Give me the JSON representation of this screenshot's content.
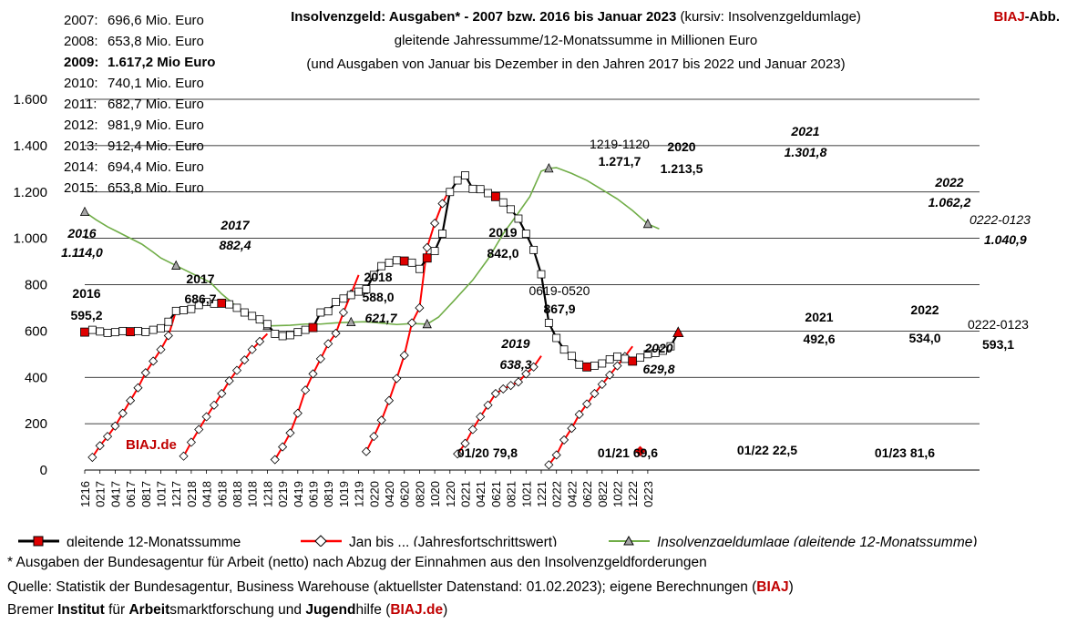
{
  "header": {
    "title_bold": "Insolvenzgeld: Ausgaben* - 2007 bzw. 2016 bis Januar 2023",
    "title_rest": " (kursiv: Insolvenzgeldumlage)",
    "subtitle1": "gleitende  Jahressumme/12-Monatssumme in Millionen Euro",
    "subtitle2": "(und Ausgaben von Januar bis Dezember in den Jahren 2017 bis 2022 und Januar 2023)",
    "brand_red": "BIAJ",
    "brand_rest": "-Abb."
  },
  "history": [
    {
      "year": "2007:",
      "value": "696,6 Mio. Euro",
      "bold": false
    },
    {
      "year": "2008:",
      "value": "653,8 Mio. Euro",
      "bold": false
    },
    {
      "year": "2009:",
      "value": "1.617,2 Mio Euro",
      "bold": true
    },
    {
      "year": "2010:",
      "value": "740,1 Mio. Euro",
      "bold": false
    },
    {
      "year": "2011:",
      "value": "682,7 Mio. Euro",
      "bold": false
    },
    {
      "year": "2012:",
      "value": "981,9 Mio. Euro",
      "bold": false
    },
    {
      "year": "2013:",
      "value": "912,4 Mio. Euro",
      "bold": false
    },
    {
      "year": "2014:",
      "value": "694,4 Mio. Euro",
      "bold": false
    },
    {
      "year": "2015:",
      "value": "653,8 Mio. Euro",
      "bold": false
    }
  ],
  "chart_data": {
    "type": "line",
    "ylim": [
      0,
      1600
    ],
    "yticks": [
      0,
      200,
      400,
      600,
      800,
      1000,
      1200,
      1400,
      1600
    ],
    "ytick_labels": [
      "0",
      "200",
      "400",
      "600",
      "800",
      "1.000",
      "1.200",
      "1.400",
      "1.600"
    ],
    "xtick_labels": [
      "1216",
      "0217",
      "0417",
      "0617",
      "0817",
      "1017",
      "1217",
      "0218",
      "0418",
      "0618",
      "0818",
      "1018",
      "1218",
      "0219",
      "0419",
      "0619",
      "0819",
      "1019",
      "1219",
      "0220",
      "0420",
      "0620",
      "0820",
      "1020",
      "1220",
      "0221",
      "0421",
      "0621",
      "0821",
      "1021",
      "1221",
      "0222",
      "0422",
      "0622",
      "0822",
      "1022",
      "1222",
      "0223"
    ],
    "grid": true,
    "legend_position": "bottom",
    "series": [
      {
        "name": "gleitende 12-Monatssumme",
        "color": "#000000",
        "marker_color": "#e00000",
        "values": [
          595.2,
          605,
          598,
          592,
          595,
          600,
          597,
          600,
          596,
          605,
          612,
          640,
          686.7,
          690,
          695,
          712,
          725,
          718,
          720,
          715,
          700,
          680,
          665,
          650,
          630,
          588.0,
          578,
          582,
          595,
          605,
          615,
          680,
          685,
          725,
          740,
          755,
          770,
          780,
          842.0,
          880,
          895,
          905,
          902,
          895,
          867.9,
          915,
          945,
          1020,
          1200,
          1250,
          1271.7,
          1213.5,
          1212,
          1195,
          1180,
          1155,
          1125,
          1085,
          1020,
          950,
          845,
          635,
          570,
          520,
          492.6,
          455,
          445,
          450,
          460,
          478,
          490,
          480,
          470,
          485,
          500,
          505,
          515,
          534.0,
          593.1
        ],
        "highlight_indices": [
          0,
          6,
          18,
          30,
          42,
          45,
          54,
          66,
          72,
          78
        ]
      },
      {
        "name": "Jan bis ... (Jahresfortschrittswert)",
        "color": "#ff0000",
        "marker_color": "#ffffff",
        "segments": [
          {
            "year": "2017",
            "start_index": 1,
            "values": [
              55,
              105,
              145,
              190,
              245,
              300,
              355,
              420,
              470,
              520,
              580,
              686.7
            ]
          },
          {
            "year": "2018",
            "start_index": 13,
            "values": [
              60,
              120,
              175,
              230,
              280,
              330,
              385,
              430,
              475,
              520,
              555,
              588.0
            ]
          },
          {
            "year": "2019",
            "start_index": 25,
            "values": [
              45,
              100,
              160,
              245,
              345,
              415,
              480,
              545,
              590,
              680,
              760,
              842.0
            ]
          },
          {
            "year": "2020",
            "start_index": 37,
            "values": [
              79.8,
              145,
              215,
              300,
              395,
              495,
              635,
              700,
              960,
              1065,
              1150,
              1213.5
            ]
          },
          {
            "year": "2021",
            "start_index": 49,
            "values": [
              69.6,
              115,
              175,
              230,
              280,
              330,
              350,
              365,
              380,
              415,
              445,
              492.6
            ]
          },
          {
            "year": "2022",
            "start_index": 61,
            "values": [
              22.5,
              65,
              130,
              180,
              240,
              285,
              330,
              370,
              410,
              450,
              490,
              534.0
            ]
          },
          {
            "year": "2023",
            "start_index": 73,
            "values": [
              81.6
            ]
          }
        ]
      },
      {
        "name": "Insolvenzgeldumlage (gleitende 12-Monatssumme)",
        "color": "#70ad47",
        "marker_color": "#a6a6a6",
        "points": [
          [
            0,
            1114.0
          ],
          [
            3,
            1080
          ],
          [
            6,
            1050
          ],
          [
            9,
            1025
          ],
          [
            12,
            1000
          ],
          [
            15,
            975
          ],
          [
            18,
            940
          ],
          [
            20,
            915
          ],
          [
            24,
            882.4
          ],
          [
            28,
            850
          ],
          [
            33,
            810
          ],
          [
            36,
            760
          ],
          [
            40,
            705
          ],
          [
            44,
            660
          ],
          [
            48,
            621.7
          ],
          [
            54,
            625
          ],
          [
            58,
            630
          ],
          [
            62,
            630
          ],
          [
            66,
            635
          ],
          [
            70,
            638.3
          ],
          [
            74,
            640
          ],
          [
            78,
            634
          ],
          [
            82,
            628
          ],
          [
            86,
            632
          ],
          [
            90,
            629.8
          ],
          [
            93,
            660
          ],
          [
            97,
            730
          ],
          [
            102,
            820
          ],
          [
            106,
            910
          ],
          [
            110,
            1020
          ],
          [
            114,
            1110
          ],
          [
            117,
            1180
          ],
          [
            120,
            1290
          ],
          [
            122,
            1301.8
          ],
          [
            124,
            1305
          ],
          [
            128,
            1280
          ],
          [
            132,
            1250
          ],
          [
            136,
            1210
          ],
          [
            140,
            1170
          ],
          [
            144,
            1120
          ],
          [
            148,
            1062.2
          ],
          [
            151,
            1040.9
          ]
        ],
        "marker_indices": [
          0,
          8,
          14,
          19,
          24,
          33,
          40
        ]
      }
    ],
    "annotations": [
      {
        "text": "2016",
        "value": "595,2",
        "style": "bold"
      },
      {
        "text": "2017",
        "value": "686,7",
        "style": "bold"
      },
      {
        "text": "2018",
        "value": "588,0",
        "style": "bold"
      },
      {
        "text": "2019",
        "value": "842,0",
        "style": "bold"
      },
      {
        "text": "0619-0520",
        "value": "867,9",
        "style": "normal"
      },
      {
        "text": "1219-1120",
        "value": "1.271,7",
        "style": "normal"
      },
      {
        "text": "2020",
        "value": "1.213,5",
        "style": "bold"
      },
      {
        "text": "2021",
        "value": "492,6",
        "style": "bold"
      },
      {
        "text": "2022",
        "value": "534,0",
        "style": "bold"
      },
      {
        "text": "0222-0123",
        "value": "593,1",
        "style": "normal"
      },
      {
        "text": "2016",
        "value": "1.114,0",
        "style": "italic"
      },
      {
        "text": "2017",
        "value": "882,4",
        "style": "italic"
      },
      {
        "text": "621,7",
        "value": "",
        "style": "italic"
      },
      {
        "text": "2019",
        "value": "638,3",
        "style": "italic"
      },
      {
        "text": "2020",
        "value": "629,8",
        "style": "italic"
      },
      {
        "text": "2021",
        "value": "1.301,8",
        "style": "italic"
      },
      {
        "text": "2022",
        "value": "1.062,2",
        "style": "italic"
      },
      {
        "text": "0222-0123",
        "value": "1.040,9",
        "style": "italic"
      },
      {
        "text": "01/20 79,8",
        "value": "",
        "style": "bold"
      },
      {
        "text": "01/21 69,6",
        "value": "",
        "style": "bold"
      },
      {
        "text": "01/22 22,5",
        "value": "",
        "style": "bold"
      },
      {
        "text": "01/23 81,6",
        "value": "",
        "style": "bold"
      }
    ],
    "watermark": "BIAJ.de"
  },
  "footer": {
    "note": "* Ausgaben der Bundesagentur für Arbeit (netto) nach Abzug der Einnahmen aus den Insolvenzgeldforderungen",
    "source_text": "Quelle: Statistik der Bundesagentur, Business Warehouse (aktuellster Datenstand: 01.02.2023); eigene Berechnungen (",
    "source_brand": "BIAJ",
    "source_end": ")",
    "inst_parts": [
      "Bremer ",
      "Institut",
      " für ",
      "Arbeit",
      "smarktforschung und ",
      "Jugend",
      "hilfe ("
    ],
    "inst_brand": "BIAJ.de",
    "inst_end": ")"
  }
}
